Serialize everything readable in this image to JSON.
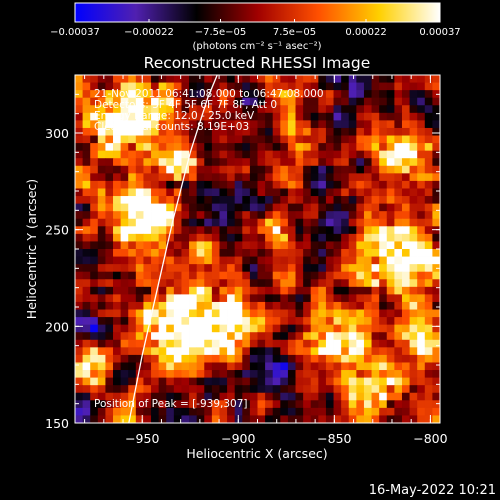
{
  "chart_data": {
    "type": "heatmap",
    "title": "Reconstructed RHESSI Image",
    "xlabel": "Heliocentric X (arcsec)",
    "ylabel": "Heliocentric Y (arcsec)",
    "xlim": [
      -985,
      -795
    ],
    "ylim": [
      150,
      330
    ],
    "x_ticks": [
      -950,
      -900,
      -850,
      -800
    ],
    "y_ticks": [
      150,
      200,
      250,
      300
    ],
    "x_tick_labels": [
      "−950",
      "−900",
      "−850",
      "−800"
    ],
    "y_tick_labels": [
      "150",
      "200",
      "250",
      "300"
    ],
    "colorbar": {
      "range": [
        -0.00037,
        0.00037
      ],
      "ticks": [
        -0.00037,
        -0.00022,
        -7.5e-05,
        7.5e-05,
        0.00022,
        0.00037
      ],
      "tick_labels": [
        "−0.00037",
        "−0.00022",
        "−7.5e−05",
        "7.5e−05",
        "0.00022",
        "0.00037"
      ],
      "unit_label": "(photons cm⁻² s⁻¹ asec⁻²)",
      "colors": [
        "#0000ff",
        "#5020b0",
        "#000000",
        "#a00000",
        "#ff5000",
        "#ffd000",
        "#ffffff"
      ]
    },
    "annotations": [
      "21-Nov-2011 06:41:08.000 to 06:47:08.000",
      "Detectors: 3F 4F 5F 6F 7F 8F, Att 0",
      "Energy Range: 12.0 - 25.0 keV",
      "Clean    Total counts: 8.19E+03"
    ],
    "peak_label": "Position of Peak = [-939,307]",
    "peak_position": [
      -939,
      307
    ],
    "limb_curve": [
      [
        -957,
        150
      ],
      [
        -950,
        185
      ],
      [
        -942,
        220
      ],
      [
        -934,
        255
      ],
      [
        -925,
        290
      ],
      [
        -916,
        318
      ],
      [
        -911,
        330
      ]
    ],
    "footer": "16-May-2022 10:21"
  }
}
